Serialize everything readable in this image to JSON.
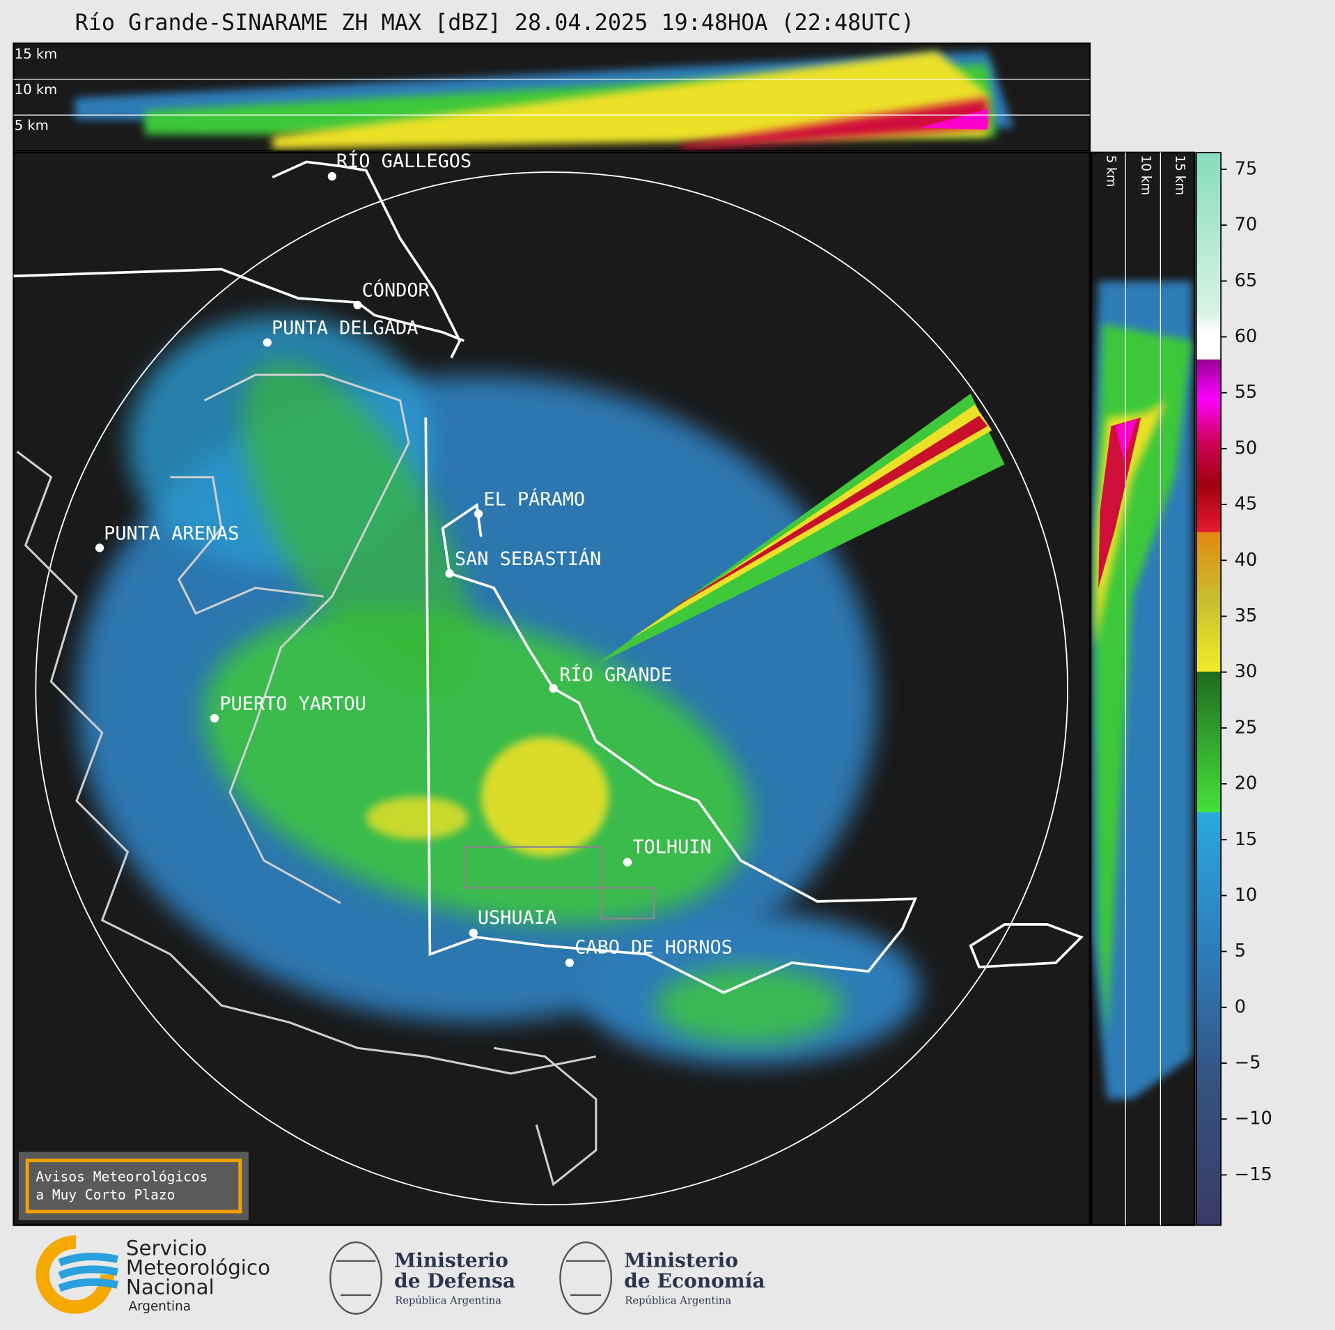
{
  "title": "Río Grande-SINARAME ZH MAX [dBZ] 28.04.2025 19:48HOA (22:48UTC)",
  "top_panel": {
    "height_labels": [
      "15 km",
      "10 km",
      "5 km"
    ]
  },
  "right_panel": {
    "height_labels": [
      "5 km",
      "10 km",
      "15 km"
    ]
  },
  "cities": [
    "RÍO GALLEGOS",
    "CÓNDOR",
    "PUNTA DELGADA",
    "EL PÁRAMO",
    "PUNTA ARENAS",
    "SAN SEBASTIÁN",
    "RÍO GRANDE",
    "PUERTO YARTOU",
    "TOLHUIN",
    "USHUAIA",
    "CABO DE HORNOS"
  ],
  "colorbar": {
    "range": [
      -19.5,
      76.5
    ],
    "ticks": [
      75,
      70,
      65,
      60,
      55,
      50,
      45,
      40,
      35,
      30,
      25,
      20,
      15,
      10,
      5,
      0,
      {
        "value": -5,
        "label": "−5"
      },
      {
        "value": -10,
        "label": "−10"
      },
      {
        "value": -15,
        "label": "−15"
      }
    ]
  },
  "warning_box": {
    "lines": [
      "Avisos Meteorológicos",
      "a Muy Corto Plazo"
    ]
  },
  "logos": [
    {
      "lines": [
        "Servicio",
        "Meteorológico",
        "Nacional",
        "Argentina"
      ]
    },
    {
      "lines": [
        "Ministerio",
        "de Defensa",
        "República Argentina"
      ]
    },
    {
      "lines": [
        "Ministerio",
        "de Economía",
        "República Argentina"
      ]
    }
  ]
}
